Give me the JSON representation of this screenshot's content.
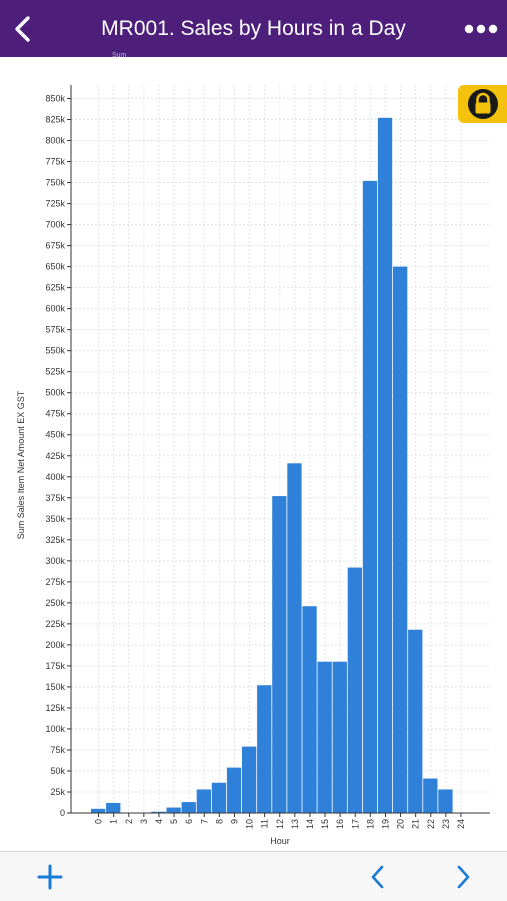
{
  "header": {
    "back_icon": "chevron-left-icon",
    "title": "MR001. Sales by Hours in a Day",
    "more_icon": "more-horizontal-icon",
    "background_color": "#4d1f7a"
  },
  "ghost_label": "Sum",
  "lock_badge": {
    "icon": "lock-icon",
    "color": "#f4c20d"
  },
  "chart_data": {
    "type": "bar",
    "xlabel": "Hour",
    "ylabel": "Sum Sales Item Net Amount EX GST",
    "categories": [
      "0",
      "1",
      "2",
      "3",
      "4",
      "5",
      "6",
      "7",
      "8",
      "9",
      "10",
      "11",
      "12",
      "13",
      "14",
      "15",
      "16",
      "17",
      "18",
      "19",
      "20",
      "21",
      "22",
      "23",
      "24"
    ],
    "values": [
      5000,
      12000,
      500,
      500,
      1500,
      6500,
      13000,
      28000,
      36000,
      54000,
      79000,
      152000,
      377000,
      416000,
      246000,
      180000,
      180000,
      292000,
      752000,
      827000,
      650000,
      218000,
      41000,
      28000,
      0
    ],
    "ylim": [
      0,
      850000
    ],
    "yticks": [
      0,
      25000,
      50000,
      75000,
      100000,
      125000,
      150000,
      175000,
      200000,
      225000,
      250000,
      275000,
      300000,
      325000,
      350000,
      375000,
      400000,
      425000,
      450000,
      475000,
      500000,
      525000,
      550000,
      575000,
      600000,
      625000,
      650000,
      675000,
      700000,
      725000,
      750000,
      775000,
      800000,
      825000,
      850000
    ],
    "ytick_labels": [
      "0",
      "25k",
      "50k",
      "75k",
      "100k",
      "125k",
      "150k",
      "175k",
      "200k",
      "225k",
      "250k",
      "275k",
      "300k",
      "325k",
      "350k",
      "375k",
      "400k",
      "425k",
      "450k",
      "475k",
      "500k",
      "525k",
      "550k",
      "575k",
      "600k",
      "625k",
      "650k",
      "675k",
      "700k",
      "725k",
      "750k",
      "775k",
      "800k",
      "825k",
      "850k"
    ],
    "grid": true,
    "bar_color": "#2f80d8"
  },
  "bottom": {
    "add_icon": "plus-icon",
    "prev_icon": "chevron-left-icon",
    "next_icon": "chevron-right-icon",
    "icon_color": "#1a7ad8"
  }
}
